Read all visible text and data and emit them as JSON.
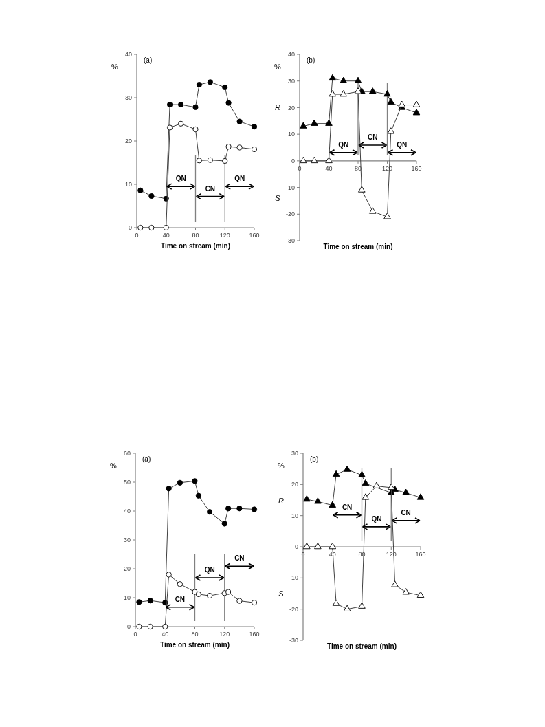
{
  "chart_data": [
    {
      "type": "line",
      "xlabel": "Time on stream (min)",
      "ylabel": "%",
      "xlim": [
        0,
        160
      ],
      "xticks": [
        0,
        40,
        80,
        120,
        160
      ],
      "ylim": [
        0,
        40
      ],
      "yticks": [
        0,
        10,
        20,
        30,
        40
      ],
      "line_style": "solid",
      "series": [
        {
          "color": "#000000",
          "marker": "circle",
          "x": [
            5,
            20,
            40,
            45,
            60,
            80,
            85,
            100,
            120,
            125,
            140,
            160
          ],
          "values": [
            8.6,
            7.3,
            6.7,
            28.4,
            28.4,
            27.8,
            33.0,
            33.6,
            32.4,
            28.8,
            24.5,
            23.3
          ]
        },
        {
          "color": "#ffffff",
          "marker": "circle",
          "x": [
            5,
            20,
            40,
            45,
            60,
            80,
            85,
            100,
            120,
            125,
            140,
            160
          ],
          "values": [
            0,
            0,
            0,
            23.1,
            24.0,
            22.7,
            15.5,
            15.6,
            15.4,
            18.7,
            18.5,
            18.1
          ]
        }
      ],
      "ref_lines": [
        {
          "axis": "x",
          "value": 80
        },
        {
          "axis": "x",
          "value": 120
        }
      ],
      "annotations": [
        "(a)",
        "QN",
        "CN",
        "QN"
      ]
    },
    {
      "type": "line",
      "xlabel": "Time on stream (min)",
      "ylabel": "%",
      "xlim": [
        0,
        160
      ],
      "xticks": [
        0,
        40,
        80,
        120,
        160
      ],
      "ylim": [
        -30,
        40
      ],
      "yticks": [
        -30,
        -20,
        -10,
        0,
        10,
        20,
        30,
        40
      ],
      "line_style": "solid",
      "series": [
        {
          "color": "#000000",
          "marker": "triangle",
          "x": [
            5,
            20,
            40,
            45,
            60,
            80,
            85,
            100,
            120,
            125,
            140,
            160
          ],
          "values": [
            13,
            14,
            14,
            31,
            30,
            30,
            26,
            26,
            25,
            22,
            20,
            18
          ]
        },
        {
          "color": "#ffffff",
          "marker": "triangle",
          "x": [
            5,
            20,
            40,
            45,
            60,
            80,
            85,
            100,
            120,
            125,
            140,
            160
          ],
          "values": [
            0,
            0,
            0,
            25,
            25,
            26,
            -11,
            -19,
            -21,
            11,
            21,
            21
          ]
        }
      ],
      "ref_lines": [
        {
          "axis": "x",
          "value": 80
        },
        {
          "axis": "x",
          "value": 120
        }
      ],
      "annotations": [
        "(b)",
        "R",
        "S",
        "QN",
        "CN",
        "QN"
      ]
    },
    {
      "type": "line",
      "xlabel": "Time on stream (min)",
      "ylabel": "%",
      "xlim": [
        0,
        160
      ],
      "xticks": [
        0,
        40,
        80,
        120,
        160
      ],
      "ylim": [
        0,
        60
      ],
      "yticks": [
        0,
        10,
        20,
        30,
        40,
        50,
        60
      ],
      "line_style": "solid",
      "series": [
        {
          "color": "#000000",
          "marker": "circle",
          "x": [
            5,
            20,
            40,
            45,
            60,
            80,
            85,
            100,
            120,
            125,
            140,
            160
          ],
          "values": [
            8.5,
            9,
            8.3,
            47.8,
            49.8,
            50.4,
            45.3,
            39.7,
            35.6,
            40.9,
            40.9,
            40.6
          ]
        },
        {
          "color": "#ffffff",
          "marker": "circle",
          "x": [
            5,
            20,
            40,
            45,
            60,
            80,
            85,
            100,
            120,
            125,
            140,
            160
          ],
          "values": [
            0,
            0,
            0,
            18,
            14.7,
            12,
            11.2,
            10.7,
            11.6,
            12,
            8.9,
            8.3
          ]
        }
      ],
      "ref_lines": [
        {
          "axis": "x",
          "value": 80
        },
        {
          "axis": "x",
          "value": 120
        }
      ],
      "annotations": [
        "(a)",
        "CN",
        "QN",
        "CN"
      ]
    },
    {
      "type": "line",
      "xlabel": "Time on stream (min)",
      "ylabel": "%",
      "xlim": [
        0,
        160
      ],
      "xticks": [
        0,
        40,
        80,
        120,
        160
      ],
      "ylim": [
        -30,
        30
      ],
      "yticks": [
        -30,
        -20,
        -10,
        0,
        10,
        20,
        30
      ],
      "line_style": "solid",
      "series": [
        {
          "color": "#000000",
          "marker": "triangle",
          "x": [
            5,
            20,
            40,
            45,
            60,
            80,
            85,
            100,
            120,
            125,
            140,
            160
          ],
          "values": [
            15.2,
            14.5,
            13.3,
            23.2,
            24.8,
            23,
            20.3,
            null,
            17.3,
            18.3,
            17.3,
            15.8
          ]
        },
        {
          "color": "#ffffff",
          "marker": "triangle",
          "x": [
            5,
            20,
            40,
            45,
            60,
            80,
            85,
            100,
            120,
            125,
            140,
            160
          ],
          "values": [
            0,
            0,
            0,
            -18.2,
            -20,
            -19.1,
            15.8,
            19.5,
            19,
            -12.2,
            -14.6,
            -15.6
          ]
        }
      ],
      "ref_lines": [
        {
          "axis": "x",
          "value": 80
        },
        {
          "axis": "x",
          "value": 120
        }
      ],
      "annotations": [
        "(b)",
        "R",
        "S",
        "CN",
        "QN",
        "CN"
      ]
    }
  ]
}
